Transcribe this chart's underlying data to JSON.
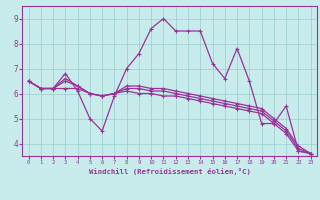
{
  "background_color": "#c8ecec",
  "grid_color": "#99cccc",
  "line_color": "#993399",
  "xlabel": "Windchill (Refroidissement éolien,°C)",
  "xlim": [
    -0.5,
    23.5
  ],
  "ylim": [
    3.5,
    9.5
  ],
  "yticks": [
    4,
    5,
    6,
    7,
    8,
    9
  ],
  "xticks": [
    0,
    1,
    2,
    3,
    4,
    5,
    6,
    7,
    8,
    9,
    10,
    11,
    12,
    13,
    14,
    15,
    16,
    17,
    18,
    19,
    20,
    21,
    22,
    23
  ],
  "series": [
    [
      6.5,
      6.2,
      6.2,
      6.8,
      6.1,
      5.0,
      4.5,
      5.9,
      7.0,
      7.6,
      8.6,
      9.0,
      8.5,
      8.5,
      8.5,
      7.2,
      6.6,
      7.8,
      6.5,
      4.8,
      4.8,
      5.5,
      3.7,
      3.6
    ],
    [
      6.5,
      6.2,
      6.2,
      6.2,
      6.2,
      6.0,
      5.9,
      6.0,
      6.1,
      6.0,
      6.0,
      5.9,
      5.9,
      5.8,
      5.7,
      5.6,
      5.5,
      5.4,
      5.3,
      5.2,
      4.8,
      4.4,
      3.7,
      3.6
    ],
    [
      6.5,
      6.2,
      6.2,
      6.5,
      6.3,
      6.0,
      5.9,
      6.0,
      6.2,
      6.2,
      6.1,
      6.1,
      6.0,
      5.9,
      5.8,
      5.7,
      5.6,
      5.5,
      5.4,
      5.3,
      4.9,
      4.5,
      3.8,
      3.6
    ],
    [
      6.5,
      6.2,
      6.2,
      6.6,
      6.3,
      6.0,
      5.9,
      6.0,
      6.3,
      6.3,
      6.2,
      6.2,
      6.1,
      6.0,
      5.9,
      5.8,
      5.7,
      5.6,
      5.5,
      5.4,
      5.0,
      4.6,
      3.9,
      3.6
    ]
  ]
}
